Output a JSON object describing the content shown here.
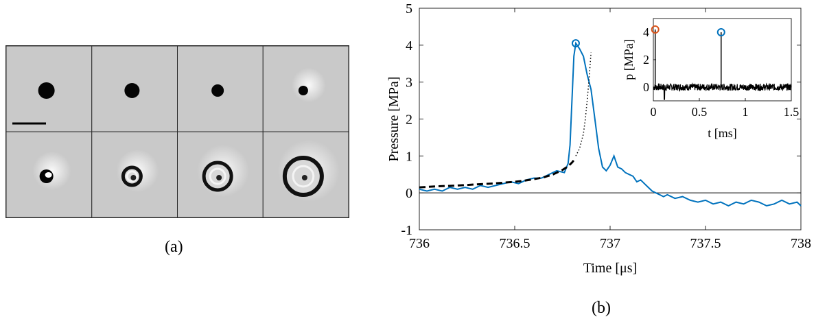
{
  "panel_a": {
    "caption": "(a)",
    "rows": 2,
    "cols": 4,
    "has_scale_bar": true
  },
  "panel_b": {
    "caption": "(b)"
  },
  "chart_data": [
    {
      "type": "line",
      "xlabel": "Time [μs]",
      "ylabel": "Pressure [MPa]",
      "xlim": [
        736,
        738
      ],
      "ylim": [
        -1,
        5
      ],
      "xticks": [
        736,
        736.5,
        737,
        737.5,
        738
      ],
      "xtick_labels": [
        "736",
        "736.5",
        "737",
        "737.5",
        "738"
      ],
      "yticks": [
        -1,
        0,
        1,
        2,
        3,
        4,
        5
      ],
      "ytick_labels": [
        "-1",
        "0",
        "1",
        "2",
        "3",
        "4",
        "5"
      ],
      "grid": false,
      "zero_line": true,
      "series": [
        {
          "style": "solid",
          "color": "#0072BD",
          "x": [
            736,
            736.04,
            736.08,
            736.12,
            736.16,
            736.2,
            736.24,
            736.28,
            736.32,
            736.36,
            736.4,
            736.44,
            736.48,
            736.52,
            736.56,
            736.6,
            736.64,
            736.68,
            736.72,
            736.76,
            736.78,
            736.79,
            736.8,
            736.81,
            736.82,
            736.84,
            736.86,
            736.88,
            736.9,
            736.92,
            736.94,
            736.96,
            736.98,
            737,
            737.02,
            737.04,
            737.06,
            737.08,
            737.1,
            737.12,
            737.14,
            737.16,
            737.18,
            737.2,
            737.22,
            737.24,
            737.26,
            737.28,
            737.3,
            737.34,
            737.38,
            737.42,
            737.46,
            737.5,
            737.54,
            737.58,
            737.62,
            737.66,
            737.7,
            737.74,
            737.78,
            737.82,
            737.86,
            737.9,
            737.94,
            737.98,
            738
          ],
          "y": [
            0.1,
            0.05,
            0.1,
            0.05,
            0.15,
            0.1,
            0.15,
            0.1,
            0.2,
            0.15,
            0.2,
            0.25,
            0.3,
            0.25,
            0.35,
            0.4,
            0.4,
            0.5,
            0.6,
            0.55,
            0.8,
            1.3,
            2.5,
            3.7,
            4.05,
            3.9,
            3.7,
            3.2,
            2.8,
            2.0,
            1.2,
            0.7,
            0.6,
            0.75,
            1.0,
            0.7,
            0.65,
            0.55,
            0.5,
            0.45,
            0.3,
            0.35,
            0.25,
            0.15,
            0.05,
            0.0,
            -0.05,
            -0.1,
            -0.05,
            -0.15,
            -0.1,
            -0.2,
            -0.25,
            -0.2,
            -0.3,
            -0.25,
            -0.35,
            -0.25,
            -0.3,
            -0.2,
            -0.25,
            -0.35,
            -0.3,
            -0.2,
            -0.3,
            -0.25,
            -0.35
          ]
        },
        {
          "style": "dashed",
          "color": "#000000",
          "x": [
            736,
            736.1,
            736.2,
            736.3,
            736.4,
            736.5,
            736.55,
            736.6,
            736.65,
            736.7,
            736.75,
            736.78,
            736.8,
            736.82
          ],
          "y": [
            0.15,
            0.18,
            0.2,
            0.23,
            0.26,
            0.3,
            0.33,
            0.37,
            0.42,
            0.5,
            0.62,
            0.72,
            0.82,
            0.95
          ]
        },
        {
          "style": "dotted",
          "color": "#000000",
          "x": [
            736.82,
            736.84,
            736.86,
            736.87,
            736.88,
            736.89,
            736.9
          ],
          "y": [
            1.0,
            1.2,
            1.6,
            2.0,
            2.5,
            3.1,
            3.8
          ]
        }
      ],
      "markers": [
        {
          "x": 736.82,
          "y": 4.05,
          "color": "#0072BD"
        }
      ]
    },
    {
      "type": "line",
      "xlabel": "t [ms]",
      "ylabel": "p [MPa]",
      "xlim": [
        0,
        1.5
      ],
      "ylim": [
        -1,
        5
      ],
      "xticks": [
        0,
        0.5,
        1,
        1.5
      ],
      "xtick_labels": [
        "0",
        "0.5",
        "1",
        "1.5"
      ],
      "yticks": [
        0,
        2,
        4
      ],
      "ytick_labels": [
        "0",
        "2",
        "4"
      ],
      "peaks": [
        {
          "x": 0.02,
          "y": 4.2,
          "color": "#D95319"
        },
        {
          "x": 0.737,
          "y": 4.0,
          "color": "#0072BD"
        }
      ],
      "noise_level": 0.25,
      "trace_color": "#000000"
    }
  ]
}
